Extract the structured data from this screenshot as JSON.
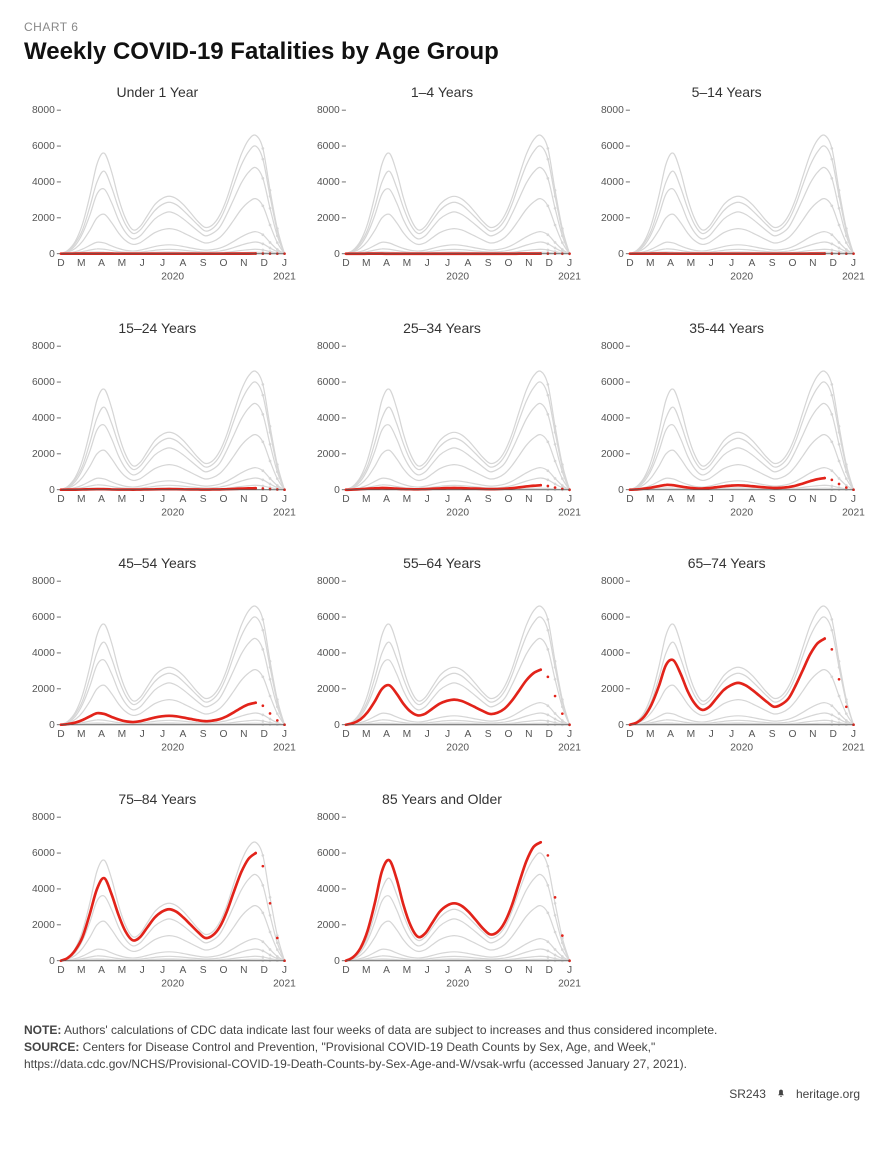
{
  "chart_label": "CHART 6",
  "title": "Weekly COVID-19 Fatalities by Age Group",
  "colors": {
    "axis": "#555555",
    "tick_text": "#555555",
    "context_line": "#d6d6d6",
    "highlight_line": "#e2231a",
    "background": "#ffffff"
  },
  "typography": {
    "chart_label_fontsize": 12,
    "title_fontsize": 24,
    "panel_title_fontsize": 14,
    "tick_fontsize": 10,
    "notes_fontsize": 12
  },
  "axes": {
    "ylim": [
      0,
      8000
    ],
    "yticks": [
      0,
      2000,
      4000,
      6000,
      8000
    ],
    "x_months": [
      "D",
      "M",
      "A",
      "M",
      "J",
      "J",
      "A",
      "S",
      "O",
      "N",
      "D",
      "J"
    ],
    "x_year_labels": [
      {
        "label": "2020",
        "at_index": 5.5
      },
      {
        "label": "2021",
        "at_index": 11
      }
    ],
    "line_width_context": 1.2,
    "line_width_highlight": 2.6,
    "incomplete_weeks_from_end": 4
  },
  "panels": [
    {
      "title": "Under 1 Year",
      "highlight_index": 0
    },
    {
      "title": "1–4 Years",
      "highlight_index": 1
    },
    {
      "title": "5–14 Years",
      "highlight_index": 2
    },
    {
      "title": "15–24 Years",
      "highlight_index": 3
    },
    {
      "title": "25–34 Years",
      "highlight_index": 4
    },
    {
      "title": "35-44 Years",
      "highlight_index": 5
    },
    {
      "title": "45–54 Years",
      "highlight_index": 6
    },
    {
      "title": "55–64 Years",
      "highlight_index": 7
    },
    {
      "title": "65–74 Years",
      "highlight_index": 8
    },
    {
      "title": "75–84 Years",
      "highlight_index": 9
    },
    {
      "title": "85 Years and Older",
      "highlight_index": 10
    }
  ],
  "series": [
    {
      "name": "Under 1",
      "values": [
        0,
        2,
        4,
        5,
        6,
        5,
        4,
        3,
        2,
        2,
        2,
        2,
        2,
        2,
        2,
        2,
        2,
        2,
        2,
        2,
        2,
        2,
        2,
        3,
        4,
        6,
        8,
        10,
        8,
        5,
        2,
        0
      ]
    },
    {
      "name": "1-4",
      "values": [
        0,
        1,
        2,
        3,
        4,
        3,
        2,
        2,
        1,
        1,
        1,
        1,
        1,
        1,
        1,
        1,
        1,
        1,
        1,
        1,
        1,
        1,
        1,
        2,
        3,
        4,
        5,
        6,
        5,
        3,
        1,
        0
      ]
    },
    {
      "name": "5-14",
      "values": [
        0,
        1,
        2,
        3,
        3,
        3,
        2,
        2,
        1,
        1,
        1,
        1,
        1,
        1,
        1,
        1,
        1,
        1,
        1,
        1,
        1,
        1,
        1,
        2,
        2,
        3,
        4,
        5,
        4,
        2,
        1,
        0
      ]
    },
    {
      "name": "15-24",
      "values": [
        0,
        3,
        8,
        15,
        25,
        30,
        28,
        20,
        14,
        10,
        8,
        12,
        18,
        25,
        30,
        32,
        30,
        25,
        20,
        15,
        12,
        15,
        20,
        30,
        45,
        60,
        75,
        85,
        70,
        40,
        15,
        0
      ]
    },
    {
      "name": "25-34",
      "values": [
        0,
        10,
        30,
        55,
        80,
        95,
        85,
        60,
        40,
        28,
        25,
        35,
        55,
        75,
        90,
        95,
        90,
        75,
        60,
        45,
        35,
        40,
        55,
        85,
        130,
        180,
        225,
        250,
        210,
        120,
        45,
        0
      ]
    },
    {
      "name": "35-44",
      "values": [
        0,
        20,
        60,
        120,
        200,
        270,
        250,
        180,
        120,
        80,
        65,
        90,
        140,
        190,
        230,
        245,
        230,
        195,
        155,
        120,
        95,
        110,
        150,
        230,
        350,
        480,
        590,
        650,
        550,
        320,
        120,
        0
      ]
    },
    {
      "name": "45-54",
      "values": [
        0,
        40,
        120,
        260,
        460,
        640,
        600,
        440,
        290,
        190,
        150,
        200,
        300,
        400,
        470,
        500,
        470,
        400,
        320,
        250,
        200,
        230,
        310,
        470,
        700,
        940,
        1130,
        1230,
        1060,
        630,
        240,
        0
      ]
    },
    {
      "name": "55-64",
      "values": [
        0,
        90,
        300,
        700,
        1300,
        2000,
        2200,
        1750,
        1150,
        720,
        520,
        620,
        900,
        1170,
        1330,
        1400,
        1330,
        1160,
        960,
        760,
        600,
        670,
        900,
        1330,
        1900,
        2470,
        2870,
        3070,
        2670,
        1600,
        620,
        0
      ]
    },
    {
      "name": "65-74",
      "values": [
        0,
        130,
        470,
        1130,
        2130,
        3330,
        3600,
        2870,
        1870,
        1170,
        830,
        1000,
        1470,
        1930,
        2200,
        2330,
        2200,
        1930,
        1600,
        1270,
        1000,
        1130,
        1470,
        2200,
        3070,
        3930,
        4530,
        4800,
        4200,
        2530,
        1000,
        0
      ]
    },
    {
      "name": "75-84",
      "values": [
        0,
        170,
        600,
        1330,
        2600,
        4000,
        4600,
        3730,
        2530,
        1600,
        1130,
        1330,
        1870,
        2400,
        2730,
        2870,
        2730,
        2400,
        2000,
        1600,
        1270,
        1400,
        1870,
        2730,
        3870,
        4930,
        5670,
        6000,
        5270,
        3200,
        1270,
        0
      ]
    },
    {
      "name": "85+",
      "values": [
        0,
        200,
        700,
        1670,
        3200,
        5000,
        5600,
        4600,
        3070,
        1930,
        1330,
        1530,
        2130,
        2730,
        3070,
        3200,
        3070,
        2730,
        2270,
        1800,
        1470,
        1600,
        2130,
        3070,
        4330,
        5530,
        6330,
        6600,
        5870,
        3530,
        1400,
        0
      ]
    }
  ],
  "notes": {
    "note_label": "NOTE:",
    "note_text": " Authors' calculations of CDC data indicate last four weeks of data are subject to increases and thus considered incomplete.",
    "source_label": "SOURCE:",
    "source_text": " Centers for Disease Control and Prevention, \"Provisional COVID-19 Death Counts by Sex, Age, and Week,\" https://data.cdc.gov/NCHS/Provisional-COVID-19-Death-Counts-by-Sex-Age-and-W/vsak-wrfu (accessed January 27, 2021)."
  },
  "footer": {
    "id": "SR243",
    "site": "heritage.org"
  }
}
